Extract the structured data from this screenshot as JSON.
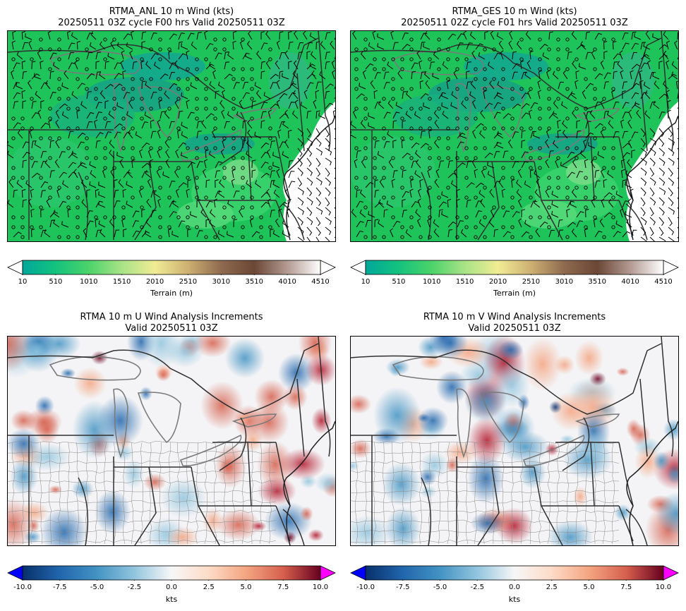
{
  "panels": [
    {
      "title1": "RTMA_ANL 10 m Wind (kts)",
      "title2": "20250511 03Z cycle F00 hrs Valid 20250511 03Z"
    },
    {
      "title1": "RTMA_GES 10 m Wind (kts)",
      "title2": "20250511 02Z cycle F01 hrs Valid 20250511 03Z"
    },
    {
      "title1": "RTMA 10 m U Wind Analysis Increments",
      "title2": "Valid 20250511 03Z"
    },
    {
      "title1": "RTMA 10 m V Wind Analysis Increments",
      "title2": "Valid 20250511 03Z"
    }
  ],
  "terrain_colorbar": {
    "label": "Terrain (m)",
    "ticks": [
      "10",
      "510",
      "1010",
      "1510",
      "2010",
      "2510",
      "3010",
      "3510",
      "4010",
      "4510"
    ],
    "colors": [
      "#00a89a",
      "#14c27e",
      "#4cd36a",
      "#a9e386",
      "#f0ec94",
      "#cdb072",
      "#8f6a4f",
      "#6b4736",
      "#b39a92",
      "#ffffff"
    ]
  },
  "increment_colorbar": {
    "label": "kts",
    "ticks": [
      "-10.0",
      "-7.5",
      "-5.0",
      "-2.5",
      "0.0",
      "2.5",
      "5.0",
      "7.5",
      "10.0"
    ],
    "under_color": "#0000ff",
    "over_color": "#ff00ff",
    "colors": [
      "#08306b",
      "#2166ac",
      "#4393c3",
      "#92c5de",
      "#f7f7f7",
      "#fddbc7",
      "#f4a582",
      "#d6604d",
      "#67001f"
    ]
  }
}
